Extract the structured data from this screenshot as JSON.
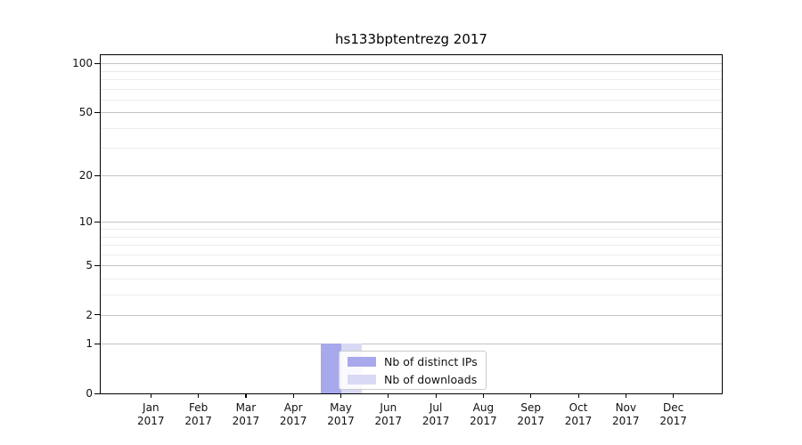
{
  "figure": {
    "title": "hs133bptentrezg 2017"
  },
  "legend": {
    "items": [
      {
        "label": "Nb of distinct IPs",
        "color": "#a8a8ec"
      },
      {
        "label": "Nb of downloads",
        "color": "#d9d9f5"
      }
    ]
  },
  "chart_data": {
    "type": "bar",
    "title": "hs133bptentrezg 2017",
    "categories": [
      "Jan 2017",
      "Feb 2017",
      "Mar 2017",
      "Apr 2017",
      "May 2017",
      "Jun 2017",
      "Jul 2017",
      "Aug 2017",
      "Sep 2017",
      "Oct 2017",
      "Nov 2017",
      "Dec 2017"
    ],
    "series": [
      {
        "name": "Nb of distinct IPs",
        "color": "#a8a8ec",
        "values": [
          0,
          0,
          0,
          0,
          1,
          0,
          0,
          0,
          0,
          0,
          0,
          0
        ]
      },
      {
        "name": "Nb of downloads",
        "color": "#d9d9f5",
        "values": [
          0,
          0,
          0,
          0,
          1,
          0,
          0,
          0,
          0,
          0,
          0,
          0
        ]
      }
    ],
    "xlabel": "",
    "ylabel": "",
    "yscale": "log1p",
    "yticks": [
      0,
      1,
      2,
      5,
      10,
      20,
      50,
      100
    ],
    "minor_yticks": [
      3,
      4,
      6,
      7,
      8,
      9,
      30,
      40,
      60,
      70,
      80,
      90
    ],
    "ylim": [
      0,
      112
    ],
    "grid": true,
    "legend_position": "lower center"
  },
  "colors": {
    "background": "#ffffff",
    "frame": "#000000",
    "major_grid": "#c4c4c4",
    "minor_grid": "#ebebeb",
    "text": "#111111",
    "legend_border": "#cccccc",
    "legend_bg": "#ffffff"
  }
}
